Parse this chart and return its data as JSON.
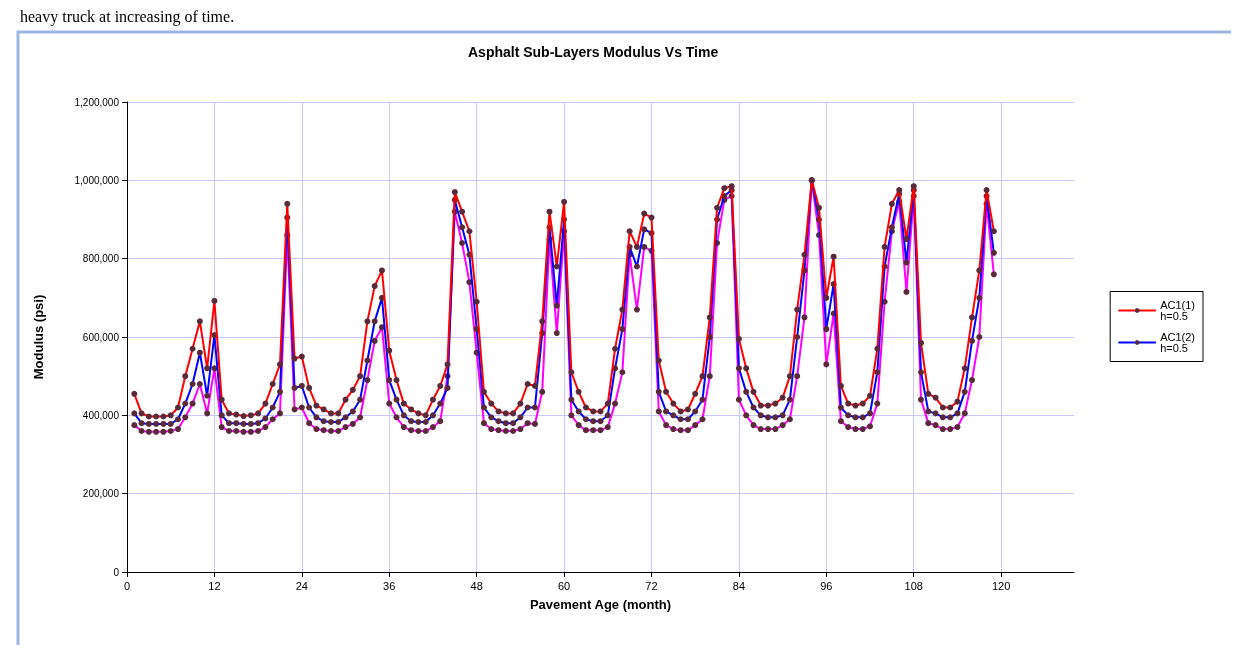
{
  "chart_data": {
    "type": "line",
    "title": "Asphalt Sub-Layers Modulus Vs Time",
    "xlabel": "Pavement Age (month)",
    "ylabel": "Modulus (psi)",
    "annotations": [
      "heavy truck at increasing of time."
    ],
    "x": [
      1,
      2,
      3,
      4,
      5,
      6,
      7,
      8,
      9,
      10,
      11,
      12,
      13,
      14,
      15,
      16,
      17,
      18,
      19,
      20,
      21,
      22,
      23,
      24,
      25,
      26,
      27,
      28,
      29,
      30,
      31,
      32,
      33,
      34,
      35,
      36,
      37,
      38,
      39,
      40,
      41,
      42,
      43,
      44,
      45,
      46,
      47,
      48,
      49,
      50,
      51,
      52,
      53,
      54,
      55,
      56,
      57,
      58,
      59,
      60,
      61,
      62,
      63,
      64,
      65,
      66,
      67,
      68,
      69,
      70,
      71,
      72,
      73,
      74,
      75,
      76,
      77,
      78,
      79,
      80,
      81,
      82,
      83,
      84,
      85,
      86,
      87,
      88,
      89,
      90,
      91,
      92,
      93,
      94,
      95,
      96,
      97,
      98,
      99,
      100,
      101,
      102,
      103,
      104,
      105,
      106,
      107,
      108,
      109,
      110,
      111,
      112,
      113,
      114,
      115,
      116,
      117,
      118,
      119
    ],
    "series": [
      {
        "name": "AC1(1) h=0.5",
        "color": "#ff0000",
        "values": [
          455000,
          405000,
          397000,
          397000,
          397000,
          400000,
          420000,
          500000,
          570000,
          640000,
          520000,
          692000,
          440000,
          405000,
          402000,
          398000,
          400000,
          405000,
          430000,
          480000,
          530000,
          940000,
          545000,
          550000,
          470000,
          425000,
          415000,
          405000,
          405000,
          440000,
          465000,
          500000,
          640000,
          730000,
          770000,
          565000,
          490000,
          430000,
          415000,
          405000,
          400000,
          440000,
          475000,
          530000,
          970000,
          920000,
          870000,
          690000,
          460000,
          430000,
          410000,
          405000,
          405000,
          430000,
          480000,
          475000,
          640000,
          920000,
          780000,
          945000,
          510000,
          460000,
          420000,
          410000,
          410000,
          430000,
          570000,
          670000,
          870000,
          830000,
          915000,
          905000,
          540000,
          460000,
          430000,
          410000,
          415000,
          455000,
          500000,
          650000,
          930000,
          980000,
          985000,
          595000,
          520000,
          460000,
          425000,
          425000,
          430000,
          445000,
          500000,
          670000,
          810000,
          1000000,
          930000,
          700000,
          805000,
          475000,
          430000,
          425000,
          430000,
          450000,
          570000,
          830000,
          940000,
          975000,
          850000,
          985000,
          585000,
          455000,
          445000,
          420000,
          420000,
          435000,
          520000,
          650000,
          770000,
          975000,
          870000
        ]
      },
      {
        "name": "AC1(2) h=0.5",
        "color": "#0000ff",
        "values": [
          405000,
          380000,
          378000,
          378000,
          378000,
          378000,
          390000,
          430000,
          480000,
          560000,
          450000,
          605000,
          400000,
          380000,
          380000,
          378000,
          378000,
          380000,
          392000,
          420000,
          460000,
          905000,
          470000,
          475000,
          420000,
          395000,
          385000,
          383000,
          383000,
          395000,
          410000,
          440000,
          540000,
          640000,
          700000,
          490000,
          440000,
          400000,
          385000,
          383000,
          383000,
          400000,
          430000,
          470000,
          950000,
          880000,
          810000,
          620000,
          420000,
          395000,
          385000,
          380000,
          380000,
          395000,
          420000,
          420000,
          610000,
          880000,
          680000,
          900000,
          440000,
          410000,
          390000,
          385000,
          385000,
          400000,
          520000,
          620000,
          830000,
          780000,
          875000,
          865000,
          460000,
          410000,
          400000,
          390000,
          390000,
          410000,
          440000,
          600000,
          900000,
          960000,
          975000,
          520000,
          460000,
          420000,
          400000,
          395000,
          395000,
          400000,
          440000,
          600000,
          770000,
          1000000,
          900000,
          620000,
          735000,
          420000,
          400000,
          395000,
          395000,
          405000,
          510000,
          780000,
          880000,
          965000,
          790000,
          975000,
          510000,
          410000,
          405000,
          395000,
          395000,
          405000,
          460000,
          590000,
          700000,
          960000,
          815000
        ]
      },
      {
        "color": "#ff00ff",
        "values": [
          375000,
          360000,
          358000,
          358000,
          358000,
          360000,
          365000,
          395000,
          430000,
          480000,
          405000,
          520000,
          370000,
          360000,
          360000,
          358000,
          358000,
          360000,
          370000,
          390000,
          405000,
          860000,
          415000,
          420000,
          380000,
          365000,
          362000,
          360000,
          360000,
          370000,
          378000,
          395000,
          490000,
          590000,
          625000,
          430000,
          395000,
          370000,
          362000,
          360000,
          360000,
          370000,
          385000,
          500000,
          920000,
          840000,
          740000,
          560000,
          380000,
          365000,
          362000,
          360000,
          360000,
          365000,
          380000,
          378000,
          460000,
          850000,
          610000,
          870000,
          400000,
          375000,
          362000,
          362000,
          362000,
          370000,
          430000,
          510000,
          810000,
          670000,
          830000,
          820000,
          410000,
          375000,
          365000,
          362000,
          362000,
          375000,
          390000,
          500000,
          840000,
          950000,
          960000,
          440000,
          400000,
          375000,
          365000,
          365000,
          365000,
          375000,
          390000,
          500000,
          650000,
          1000000,
          860000,
          530000,
          660000,
          385000,
          370000,
          365000,
          365000,
          372000,
          430000,
          690000,
          870000,
          945000,
          715000,
          960000,
          440000,
          380000,
          375000,
          365000,
          365000,
          370000,
          405000,
          490000,
          600000,
          940000,
          760000
        ]
      }
    ],
    "xlim": [
      0,
      130
    ],
    "xticks": [
      0,
      12,
      24,
      36,
      48,
      60,
      72,
      84,
      96,
      108,
      120
    ],
    "ylim": [
      0,
      1200000
    ],
    "yticks": [
      {
        "value": 0,
        "label": "0"
      },
      {
        "value": 200000,
        "label": "200,000"
      },
      {
        "value": 400000,
        "label": "400,000"
      },
      {
        "value": 600000,
        "label": "600,000"
      },
      {
        "value": 800000,
        "label": "800,000"
      },
      {
        "value": 1000000,
        "label": "1,000,000"
      },
      {
        "value": 1200000,
        "label": "1,200,000"
      }
    ],
    "grid": true,
    "legend": "right",
    "marker": "circle",
    "line_style": "solid"
  }
}
